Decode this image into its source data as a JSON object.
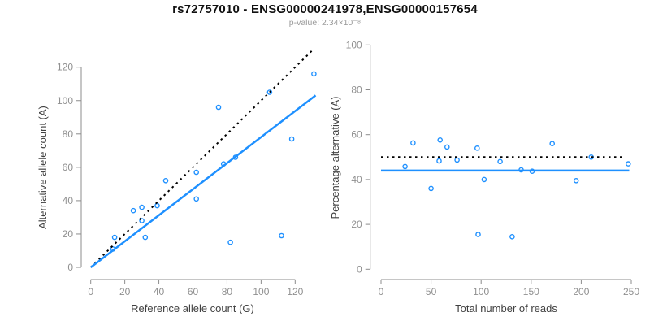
{
  "header": {
    "title": "rs72757010 - ENSG00000241978,ENSG00000157654",
    "subtitle": "p-value: 2.34×10⁻⁸"
  },
  "colors": {
    "accent_blue": "#1E90FF",
    "dotted_line": "#000000",
    "axis_line": "#8C8C8C",
    "tick_label": "#909090",
    "axis_title": "#404040",
    "title": "#111111",
    "subtitle": "#999999"
  },
  "chart_data": [
    {
      "type": "scatter",
      "name": "allele-counts",
      "xlabel": "Reference allele count (G)",
      "ylabel": "Alternative allele count (A)",
      "xlim": [
        0,
        132
      ],
      "ylim": [
        0,
        132
      ],
      "xticks": [
        0,
        20,
        40,
        60,
        80,
        100,
        120
      ],
      "yticks": [
        0,
        20,
        40,
        60,
        80,
        100,
        120
      ],
      "grid": false,
      "legend": "none",
      "points": [
        [
          131,
          116
        ],
        [
          105,
          105
        ],
        [
          75,
          96
        ],
        [
          118,
          77
        ],
        [
          85,
          66
        ],
        [
          78,
          62
        ],
        [
          62,
          57
        ],
        [
          44,
          52
        ],
        [
          62,
          41
        ],
        [
          39,
          37
        ],
        [
          30,
          36
        ],
        [
          25,
          34
        ],
        [
          30,
          28
        ],
        [
          32,
          18
        ],
        [
          14,
          18
        ],
        [
          112,
          19
        ],
        [
          82,
          15
        ],
        [
          13,
          11
        ]
      ],
      "lines": [
        {
          "name": "identity-line",
          "style": "dotted",
          "color": "#000000",
          "x1": 0,
          "y1": 0,
          "x2": 131,
          "y2": 131
        },
        {
          "name": "fit-line",
          "style": "solid",
          "color": "#1E90FF",
          "x1": 0,
          "y1": 0,
          "x2": 132,
          "y2": 103.1
        }
      ]
    },
    {
      "type": "scatter",
      "name": "percentage-vs-depth",
      "xlabel": "Total number of reads",
      "ylabel": "Percentage alternative (A)",
      "xlim": [
        0,
        250
      ],
      "ylim": [
        0,
        100
      ],
      "xticks": [
        0,
        50,
        100,
        150,
        200,
        250
      ],
      "yticks": [
        0,
        20,
        40,
        60,
        80,
        100
      ],
      "grid": false,
      "legend": "none",
      "points": [
        [
          247,
          47
        ],
        [
          210,
          50
        ],
        [
          171,
          56
        ],
        [
          195,
          39.5
        ],
        [
          151,
          43.7
        ],
        [
          140,
          44.3
        ],
        [
          119,
          48
        ],
        [
          96,
          54
        ],
        [
          103,
          40
        ],
        [
          76,
          48.7
        ],
        [
          66,
          54.5
        ],
        [
          59,
          57.6
        ],
        [
          58,
          48.3
        ],
        [
          50,
          36
        ],
        [
          32,
          56.3
        ],
        [
          131,
          14.5
        ],
        [
          97,
          15.5
        ],
        [
          24,
          45.8
        ]
      ],
      "lines": [
        {
          "name": "expected-50pct-line",
          "style": "dotted",
          "color": "#000000",
          "x1": 0,
          "y1": 50,
          "x2": 242,
          "y2": 50
        },
        {
          "name": "mean-percentage-line",
          "style": "solid",
          "color": "#1E90FF",
          "x1": 0,
          "y1": 44,
          "x2": 248,
          "y2": 44
        }
      ]
    }
  ]
}
